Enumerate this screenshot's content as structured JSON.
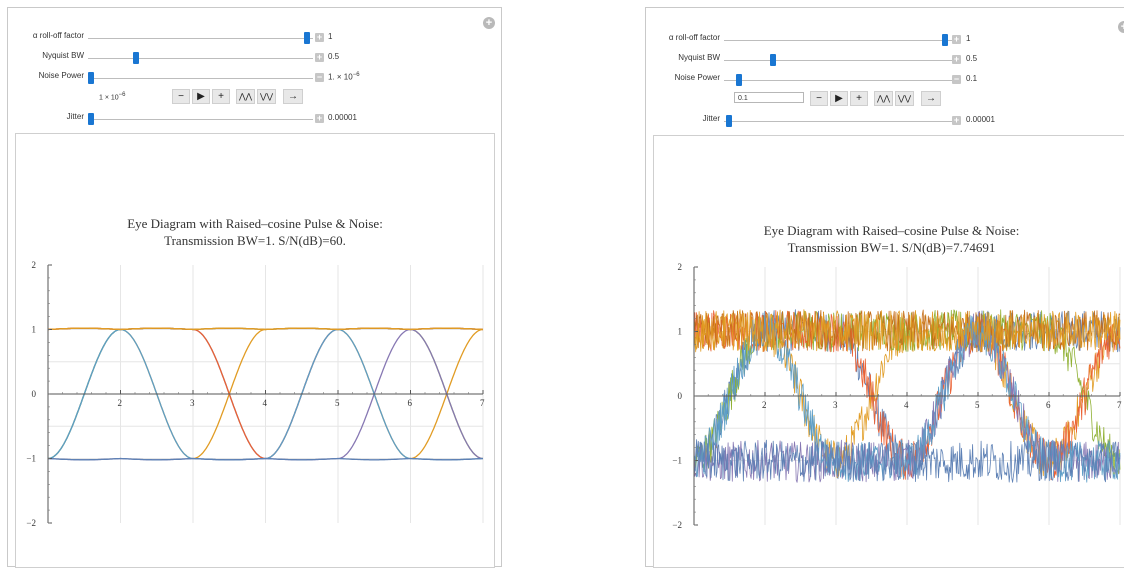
{
  "left": {
    "controls": {
      "rolloff": {
        "label": "α roll-off factor",
        "value": "1",
        "fraction": 1.0
      },
      "nyquist": {
        "label": "Nyquist BW",
        "value": "0.5",
        "fraction": 0.2
      },
      "noise": {
        "label": "Noise Power",
        "value_base": "1. × 10",
        "value_exp": "−6",
        "fraction": 0.0,
        "pm": "−"
      },
      "jitter": {
        "label": "Jitter",
        "value": "0.00001",
        "fraction": 0.0
      }
    },
    "animator": {
      "field_base": "1 × 10",
      "field_exp": "−6"
    },
    "plot": {
      "title_line1": "Eye Diagram with Raised–cosine Pulse & Noise:",
      "title_line2": "Transmission BW=1.  S/N(dB)=60."
    }
  },
  "right": {
    "controls": {
      "rolloff": {
        "label": "α roll-off factor",
        "value": "1",
        "fraction": 1.0
      },
      "nyquist": {
        "label": "Nyquist BW",
        "value": "0.5",
        "fraction": 0.2
      },
      "noise": {
        "label": "Noise Power",
        "value": "0.1",
        "fraction": 0.0,
        "pm": "−"
      },
      "jitter": {
        "label": "Jitter",
        "value": "0.00001",
        "fraction": 0.0
      }
    },
    "animator": {
      "field": "0.1"
    },
    "plot": {
      "title_line1": "Eye Diagram with Raised–cosine Pulse & Noise:",
      "title_line2": "Transmission BW=1.  S/N(dB)=7.74691"
    }
  },
  "animator_buttons": [
    "−",
    "▶",
    "+",
    "⋀⋀",
    "⋁⋁",
    "→"
  ],
  "plus_symbol": "+",
  "chart_data": [
    {
      "type": "line",
      "title": "Eye Diagram with Raised–cosine Pulse & Noise:\nTransmission BW=1.  S/N(dB)=60.",
      "x_ticks": [
        "2",
        "3",
        "4",
        "5",
        "6",
        "7"
      ],
      "y_ticks": [
        "−2",
        "−1",
        "0",
        "1",
        "2"
      ],
      "xlim": [
        1,
        7
      ],
      "ylim": [
        -2,
        2
      ],
      "noise_amplitude": 0.0,
      "series_colors": [
        "#5e81b5",
        "#e19c24",
        "#8fb032",
        "#eb6235",
        "#8778b3",
        "#c56e1a",
        "#5d9ec7"
      ],
      "bit_patterns": [
        [
          -1,
          1,
          1,
          -1,
          1,
          1,
          1,
          1
        ],
        [
          1,
          1,
          -1,
          1,
          1,
          -1,
          1,
          -1
        ],
        [
          -1,
          1,
          1,
          1,
          1,
          1,
          -1,
          -1
        ],
        [
          1,
          1,
          1,
          -1,
          1,
          1,
          1,
          1
        ],
        [
          -1,
          -1,
          -1,
          -1,
          -1,
          1,
          -1,
          -1
        ],
        [
          1,
          1,
          1,
          1,
          1,
          1,
          1,
          1
        ],
        [
          -1,
          1,
          -1,
          -1,
          1,
          -1,
          -1,
          1
        ],
        [
          -1,
          -1,
          -1,
          -1,
          -1,
          -1,
          -1,
          -1
        ],
        [
          1,
          1,
          1,
          1,
          1,
          1,
          1,
          1
        ]
      ]
    },
    {
      "type": "line",
      "title": "Eye Diagram with Raised–cosine Pulse & Noise:\nTransmission BW=1.  S/N(dB)=7.74691",
      "x_ticks": [
        "2",
        "3",
        "4",
        "5",
        "6",
        "7"
      ],
      "y_ticks": [
        "−2",
        "−1",
        "0",
        "1",
        "2"
      ],
      "xlim": [
        1,
        7
      ],
      "ylim": [
        -2,
        2
      ],
      "noise_amplitude": 0.32,
      "series_colors": [
        "#5e81b5",
        "#e19c24",
        "#8fb032",
        "#eb6235",
        "#8778b3",
        "#c56e1a",
        "#5d9ec7"
      ],
      "bit_patterns": [
        [
          -1,
          1,
          1,
          -1,
          1,
          1,
          1,
          1
        ],
        [
          1,
          1,
          -1,
          1,
          1,
          -1,
          1,
          -1
        ],
        [
          -1,
          1,
          1,
          1,
          1,
          1,
          -1,
          -1
        ],
        [
          1,
          1,
          1,
          -1,
          1,
          -1,
          1,
          1
        ],
        [
          -1,
          -1,
          -1,
          -1,
          1,
          -1,
          -1,
          -1
        ],
        [
          1,
          1,
          1,
          1,
          1,
          1,
          1,
          1
        ],
        [
          -1,
          1,
          -1,
          -1,
          1,
          -1,
          -1,
          1
        ],
        [
          -1,
          -1,
          -1,
          -1,
          -1,
          -1,
          -1,
          -1
        ],
        [
          1,
          1,
          1,
          1,
          1,
          1,
          1,
          1
        ]
      ]
    }
  ]
}
